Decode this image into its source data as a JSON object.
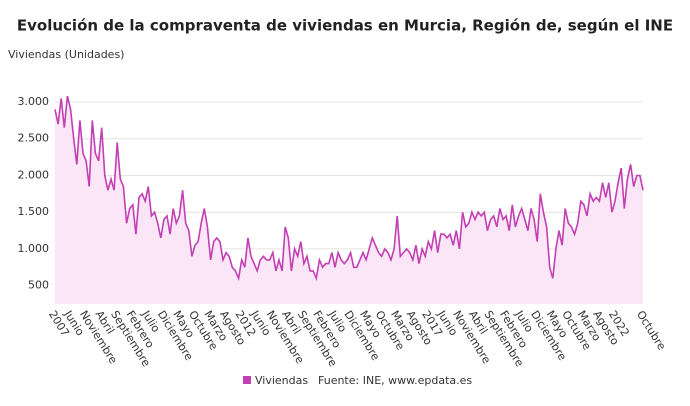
{
  "chart_data": {
    "type": "line",
    "title": "Evolución de la compraventa de viviendas en Murcia, Región de, según el INE",
    "y_label": "Viviendas (Unidades)",
    "source": "Fuente: INE, www.epdata.es",
    "categories": [
      "2007",
      null,
      null,
      null,
      null,
      "Junio",
      null,
      null,
      null,
      null,
      "Noviembre",
      null,
      null,
      null,
      null,
      "Abril",
      null,
      null,
      null,
      null,
      "Septiembre",
      null,
      null,
      null,
      null,
      "Febrero",
      null,
      null,
      null,
      null,
      "Julio",
      null,
      null,
      null,
      null,
      "Diciembre",
      null,
      null,
      null,
      null,
      "Mayo",
      null,
      null,
      null,
      null,
      "Octubre",
      null,
      null,
      null,
      null,
      "Marzo",
      null,
      null,
      null,
      null,
      "Agosto",
      null,
      null,
      null,
      null,
      "2012",
      null,
      null,
      null,
      null,
      "Junio",
      null,
      null,
      null,
      null,
      "Noviembre",
      null,
      null,
      null,
      null,
      "Abril",
      null,
      null,
      null,
      null,
      "Septiembre",
      null,
      null,
      null,
      null,
      "Febrero",
      null,
      null,
      null,
      null,
      "Julio",
      null,
      null,
      null,
      null,
      "Diciembre",
      null,
      null,
      null,
      null,
      "Mayo",
      null,
      null,
      null,
      null,
      "Octubre",
      null,
      null,
      null,
      null,
      "Marzo",
      null,
      null,
      null,
      null,
      "Agosto",
      null,
      null,
      null,
      null,
      "2017",
      null,
      null,
      null,
      null,
      "Junio",
      null,
      null,
      null,
      null,
      "Noviembre",
      null,
      null,
      null,
      null,
      "Abril",
      null,
      null,
      null,
      null,
      "Septiembre",
      null,
      null,
      null,
      null,
      "Febrero",
      null,
      null,
      null,
      null,
      "Julio",
      null,
      null,
      null,
      null,
      "Diciembre",
      null,
      null,
      null,
      null,
      "Mayo",
      null,
      null,
      null,
      null,
      "Octubre",
      null,
      null,
      null,
      null,
      "Marzo",
      null,
      null,
      null,
      null,
      "Agosto",
      null,
      null,
      null,
      null,
      "2022",
      null,
      null,
      null,
      null,
      null,
      null,
      null,
      null,
      "Octubre"
    ],
    "series": [
      {
        "name": "Viviendas",
        "color": "#c23fb4",
        "area_color": "#fbe6f7",
        "values": [
          2900,
          2700,
          3050,
          2650,
          3080,
          2900,
          2500,
          2150,
          2750,
          2300,
          2200,
          1850,
          2750,
          2300,
          2200,
          2650,
          2000,
          1800,
          1950,
          1800,
          2450,
          1950,
          1850,
          1350,
          1550,
          1600,
          1200,
          1700,
          1750,
          1650,
          1850,
          1450,
          1500,
          1350,
          1150,
          1400,
          1450,
          1200,
          1550,
          1350,
          1450,
          1800,
          1350,
          1250,
          900,
          1050,
          1100,
          1350,
          1550,
          1300,
          850,
          1100,
          1150,
          1100,
          850,
          950,
          900,
          750,
          700,
          600,
          850,
          750,
          1150,
          900,
          800,
          700,
          850,
          900,
          850,
          850,
          950,
          700,
          850,
          700,
          1300,
          1150,
          700,
          1000,
          900,
          1100,
          800,
          900,
          700,
          700,
          600,
          850,
          750,
          800,
          800,
          950,
          750,
          950,
          850,
          800,
          850,
          950,
          750,
          750,
          850,
          950,
          850,
          1000,
          1150,
          1050,
          950,
          900,
          1000,
          950,
          850,
          1000,
          1450,
          900,
          950,
          1000,
          950,
          850,
          1050,
          800,
          1000,
          900,
          1100,
          1000,
          1250,
          950,
          1200,
          1200,
          1150,
          1200,
          1050,
          1250,
          1000,
          1500,
          1300,
          1350,
          1500,
          1400,
          1500,
          1450,
          1500,
          1250,
          1400,
          1450,
          1300,
          1550,
          1400,
          1450,
          1250,
          1600,
          1300,
          1450,
          1550,
          1400,
          1250,
          1550,
          1400,
          1100,
          1750,
          1500,
          1300,
          750,
          600,
          1000,
          1250,
          1050,
          1550,
          1350,
          1300,
          1200,
          1350,
          1650,
          1600,
          1450,
          1750,
          1650,
          1700,
          1650,
          1900,
          1700,
          1900,
          1500,
          1650,
          1900,
          2100,
          1550,
          1950,
          2150,
          1850,
          2000,
          2000,
          1800
        ]
      }
    ],
    "ylim": [
      250,
      3150
    ],
    "yticks": [
      500,
      {
        "value": 1000,
        "label": "1.000"
      },
      {
        "value": 1500,
        "label": "1.500"
      },
      {
        "value": 2000,
        "label": "2.000"
      },
      {
        "value": 2500,
        "label": "2.500"
      },
      {
        "value": 3000,
        "label": "3.000"
      }
    ],
    "grid": true
  }
}
